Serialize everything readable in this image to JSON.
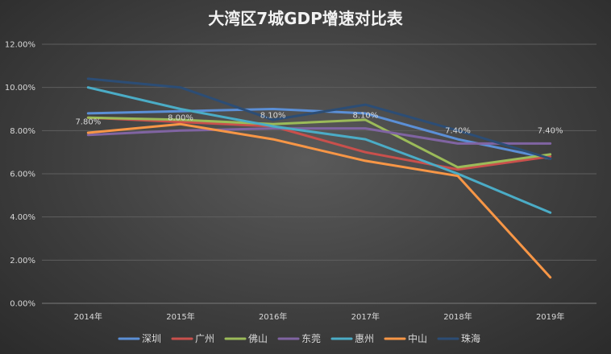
{
  "chart_data": {
    "type": "line",
    "title": "大湾区7城GDP增速对比表",
    "categories": [
      "2014年",
      "2015年",
      "2016年",
      "2017年",
      "2018年",
      "2019年"
    ],
    "ylim": [
      0,
      0.12
    ],
    "yticks": [
      "0.00%",
      "2.00%",
      "4.00%",
      "6.00%",
      "8.00%",
      "10.00%",
      "12.00%"
    ],
    "grid": true,
    "legend_position": "bottom",
    "series": [
      {
        "name": "深圳",
        "color": "#5b8fd6",
        "values": [
          0.088,
          0.089,
          0.09,
          0.088,
          0.076,
          0.067
        ]
      },
      {
        "name": "广州",
        "color": "#c9504c",
        "values": [
          0.086,
          0.084,
          0.082,
          0.07,
          0.062,
          0.068
        ]
      },
      {
        "name": "佛山",
        "color": "#9bbb59",
        "values": [
          0.086,
          0.085,
          0.083,
          0.085,
          0.063,
          0.069
        ]
      },
      {
        "name": "东莞",
        "color": "#8064a2",
        "values": [
          0.078,
          0.08,
          0.081,
          0.081,
          0.074,
          0.074
        ]
      },
      {
        "name": "惠州",
        "color": "#4bacc6",
        "values": [
          0.1,
          0.09,
          0.082,
          0.076,
          0.06,
          0.042
        ]
      },
      {
        "name": "中山",
        "color": "#f79646",
        "values": [
          0.079,
          0.083,
          0.076,
          0.066,
          0.059,
          0.012
        ]
      },
      {
        "name": "珠海",
        "color": "#2c4d75",
        "values": [
          0.104,
          0.1,
          0.085,
          0.092,
          0.08,
          0.067
        ]
      }
    ],
    "data_labels": [
      {
        "series": "东莞",
        "category": "2014年",
        "text": "7.80%"
      },
      {
        "series": "东莞",
        "category": "2015年",
        "text": "8.00%"
      },
      {
        "series": "东莞",
        "category": "2016年",
        "text": "8.10%"
      },
      {
        "series": "东莞",
        "category": "2017年",
        "text": "8.10%"
      },
      {
        "series": "东莞",
        "category": "2018年",
        "text": "7.40%"
      },
      {
        "series": "东莞",
        "category": "2019年",
        "text": "7.40%"
      }
    ]
  }
}
